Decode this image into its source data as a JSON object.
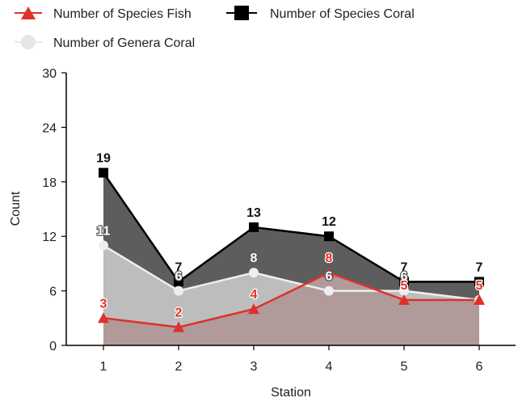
{
  "chart_data": {
    "type": "area",
    "xlabel": "Station",
    "ylabel": "Count",
    "categories": [
      "1",
      "2",
      "3",
      "4",
      "5",
      "6"
    ],
    "ylim": [
      0,
      30
    ],
    "yticks": [
      0,
      6,
      12,
      18,
      24,
      30
    ],
    "grid": false,
    "legend_position": "top",
    "series": [
      {
        "name": "Number of Species Fish",
        "values": [
          3,
          2,
          4,
          8,
          5,
          5
        ],
        "line_color": "#e0302a",
        "fill_color": "#b09a9a",
        "marker": "triangle",
        "label_color": "#e0302a"
      },
      {
        "name": "Number of Species Coral",
        "values": [
          19,
          7,
          13,
          12,
          7,
          7
        ],
        "line_color": "#000000",
        "fill_color": "#5d5d5d",
        "marker": "square",
        "label_color": "#111111"
      },
      {
        "name": "Number of Genera Coral",
        "values": [
          11,
          6,
          8,
          6,
          6,
          5
        ],
        "line_color": "#eeeeee",
        "fill_color": "#bdbdbd",
        "marker": "circle",
        "label_color": "#ffffff"
      }
    ]
  }
}
